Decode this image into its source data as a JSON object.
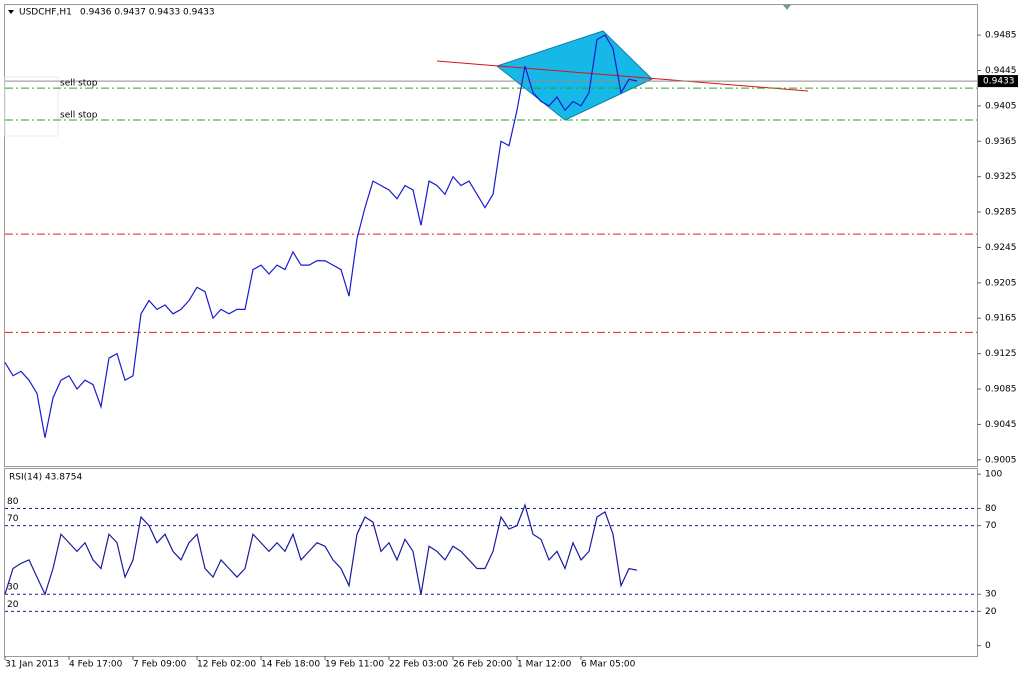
{
  "chart_data": [
    {
      "type": "line",
      "title": "USDCHF,H1",
      "subtitle": "0.9436 0.9437 0.9433 0.9433",
      "color": "#1a1ad0",
      "categories": [
        "31 Jan 2013",
        null,
        null,
        null,
        null,
        null,
        null,
        null,
        "4 Feb 17:00",
        null,
        null,
        null,
        null,
        null,
        null,
        null,
        "7 Feb 09:00",
        null,
        null,
        null,
        null,
        null,
        null,
        null,
        "12 Feb 02:00",
        null,
        null,
        null,
        null,
        null,
        null,
        null,
        "14 Feb 18:00",
        null,
        null,
        null,
        null,
        null,
        null,
        null,
        "19 Feb 11:00",
        null,
        null,
        null,
        null,
        null,
        null,
        null,
        "22 Feb 03:00",
        null,
        null,
        null,
        null,
        null,
        null,
        null,
        "26 Feb 20:00",
        null,
        null,
        null,
        null,
        null,
        null,
        null,
        "1 Mar 12:00",
        null,
        null,
        null,
        null,
        null,
        null,
        null,
        "6 Mar 05:00",
        null,
        null,
        null,
        null,
        null,
        null,
        null
      ],
      "values": [
        0.9115,
        0.91,
        0.9105,
        0.9095,
        0.908,
        0.903,
        0.9075,
        0.9095,
        0.91,
        0.9085,
        0.9095,
        0.909,
        0.9065,
        0.912,
        0.9125,
        0.9095,
        0.91,
        0.917,
        0.9185,
        0.9175,
        0.918,
        0.917,
        0.9175,
        0.9185,
        0.92,
        0.9195,
        0.9165,
        0.9175,
        0.917,
        0.9175,
        0.9175,
        0.922,
        0.9225,
        0.9215,
        0.9225,
        0.922,
        0.924,
        0.9225,
        0.9225,
        0.923,
        0.923,
        0.9225,
        0.922,
        0.919,
        0.9255,
        0.929,
        0.932,
        0.9315,
        0.931,
        0.93,
        0.9315,
        0.931,
        0.927,
        0.932,
        0.9315,
        0.9305,
        0.9325,
        0.9315,
        0.932,
        0.9305,
        0.929,
        0.9305,
        0.9365,
        0.936,
        0.94,
        0.945,
        0.942,
        0.941,
        0.9405,
        0.9415,
        0.94,
        0.941,
        0.9405,
        0.942,
        0.948,
        0.9485,
        0.947,
        0.942,
        0.9435,
        0.9433
      ],
      "ylim": [
        0.8998,
        0.9519
      ],
      "yticks": [
        0.9005,
        0.9045,
        0.9085,
        0.9125,
        0.9165,
        0.9205,
        0.9245,
        0.9285,
        0.9325,
        0.9365,
        0.9405,
        0.9445,
        0.9485
      ],
      "current_price": 0.9433,
      "levels": [
        {
          "value": 0.9433,
          "color": "#8c8c8c"
        },
        {
          "value": 0.9425,
          "color": "#22aa22",
          "label": "sell stop"
        },
        {
          "value": 0.9389,
          "color": "#22aa22",
          "label": "sell stop"
        },
        {
          "value": 0.926,
          "color": "#dd2222"
        },
        {
          "value": 0.9149,
          "color": "#dd2222"
        }
      ]
    },
    {
      "type": "line",
      "title": "RSI(14) 43.8754",
      "color": "#1a1aa0",
      "values": [
        30,
        45,
        48,
        50,
        40,
        30,
        45,
        65,
        60,
        55,
        60,
        50,
        45,
        65,
        60,
        40,
        50,
        75,
        70,
        60,
        65,
        55,
        50,
        60,
        65,
        45,
        40,
        50,
        45,
        40,
        45,
        65,
        60,
        55,
        60,
        55,
        65,
        50,
        55,
        60,
        58,
        50,
        45,
        35,
        65,
        75,
        72,
        55,
        60,
        50,
        62,
        55,
        30,
        58,
        55,
        50,
        58,
        55,
        50,
        45,
        45,
        55,
        75,
        68,
        70,
        82,
        65,
        62,
        50,
        55,
        45,
        60,
        50,
        55,
        75,
        78,
        65,
        35,
        45,
        44
      ],
      "ylim": [
        -6,
        103
      ],
      "yticks": [
        0,
        20,
        30,
        70,
        80,
        100
      ],
      "levels": [
        80,
        70,
        30,
        20
      ]
    }
  ]
}
